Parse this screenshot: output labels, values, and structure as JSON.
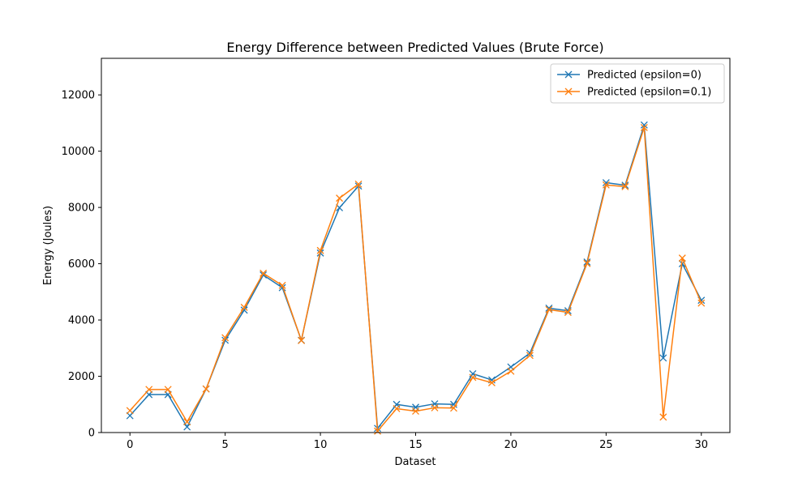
{
  "chart_data": {
    "type": "line",
    "title": "Energy Difference between Predicted Values (Brute Force)",
    "xlabel": "Dataset",
    "ylabel": "Energy (Joules)",
    "xlim": [
      -1.5,
      31.5
    ],
    "ylim": [
      0,
      13300
    ],
    "xticks": [
      0,
      5,
      10,
      15,
      20,
      25,
      30
    ],
    "yticks": [
      0,
      2000,
      4000,
      6000,
      8000,
      10000,
      12000
    ],
    "grid": false,
    "legend_position": "top-right",
    "marker": "x",
    "x": [
      0,
      1,
      2,
      3,
      4,
      5,
      6,
      7,
      8,
      9,
      10,
      11,
      12,
      13,
      14,
      15,
      16,
      17,
      18,
      19,
      20,
      21,
      22,
      23,
      24,
      25,
      26,
      27,
      28,
      29,
      30
    ],
    "series": [
      {
        "name": "Predicted (epsilon=0)",
        "color": "#1f77b4",
        "values": [
          600,
          1350,
          1350,
          200,
          1550,
          3280,
          4350,
          5600,
          5150,
          3280,
          6380,
          7990,
          8760,
          150,
          1000,
          900,
          1020,
          1000,
          2090,
          1870,
          2330,
          2820,
          4420,
          4330,
          6060,
          8880,
          8790,
          10930,
          2650,
          6000,
          4700
        ]
      },
      {
        "name": "Predicted (epsilon=0.1)",
        "color": "#ff7f0e",
        "values": [
          780,
          1530,
          1530,
          380,
          1550,
          3370,
          4450,
          5660,
          5230,
          3270,
          6470,
          8330,
          8830,
          50,
          850,
          760,
          880,
          870,
          1960,
          1770,
          2180,
          2740,
          4370,
          4270,
          6010,
          8800,
          8740,
          10840,
          550,
          6200,
          4600
        ]
      }
    ]
  }
}
